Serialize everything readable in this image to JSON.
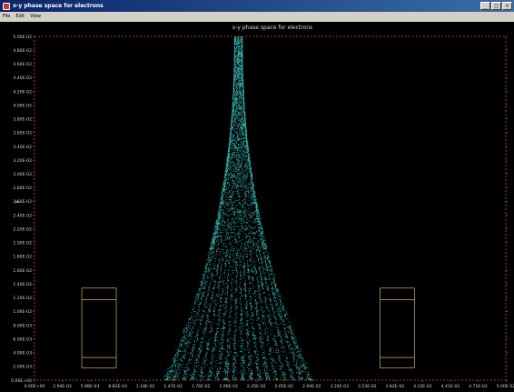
{
  "window": {
    "title": "x-y phase space for electrons",
    "minimize_label": "_",
    "maximize_label": "□",
    "close_label": "×"
  },
  "menu": {
    "items": [
      "File",
      "Edit",
      "View"
    ]
  },
  "colors": {
    "background": "#000000",
    "axis": "#c85a28",
    "tick_text": "#d8d8d8",
    "particles": "#3fd6d0",
    "boxes": "#b89a55"
  },
  "chart_data": {
    "type": "scatter",
    "title": "x-y phase space for electrons",
    "xlabel": "",
    "ylabel": "y",
    "xlim": [
      0,
      0.0588
    ],
    "ylim": [
      0,
      0.05
    ],
    "x_ticks": [
      "0.00E+00",
      "2.94E-03",
      "5.88E-03",
      "8.82E-03",
      "1.18E-02",
      "1.47E-02",
      "1.76E-02",
      "2.06E-02",
      "2.35E-02",
      "2.65E-02",
      "2.94E-02",
      "3.24E-02",
      "3.53E-02",
      "3.82E-02",
      "4.12E-02",
      "4.41E-02",
      "4.71E-02",
      "5.00E-02"
    ],
    "y_ticks": [
      "0.00E+00",
      "2.00E-03",
      "4.00E-03",
      "6.00E-03",
      "8.00E-03",
      "1.00E-02",
      "1.20E-02",
      "1.40E-02",
      "1.60E-02",
      "1.80E-02",
      "2.00E-02",
      "2.20E-02",
      "2.40E-02",
      "2.60E-02",
      "2.80E-02",
      "3.00E-02",
      "3.20E-02",
      "3.40E-02",
      "3.60E-02",
      "3.80E-02",
      "4.00E-02",
      "4.20E-02",
      "4.40E-02",
      "4.60E-02",
      "4.80E-02",
      "5.00E-02"
    ],
    "beam": {
      "base_y": 0.0,
      "top_y": 0.05,
      "half_width_at_base": 0.0095,
      "half_width_at_top": 0.0005,
      "center_x": 0.0254,
      "beamlets": 18
    },
    "rectangles": [
      {
        "x0": 0.0059,
        "x1": 0.0102,
        "y0": 0.0018,
        "y1": 0.0134,
        "inner_lines_y": [
          0.0033,
          0.0117
        ]
      },
      {
        "x0": 0.0431,
        "x1": 0.0474,
        "y0": 0.0018,
        "y1": 0.0134,
        "inner_lines_y": [
          0.0033,
          0.0117
        ]
      }
    ]
  }
}
